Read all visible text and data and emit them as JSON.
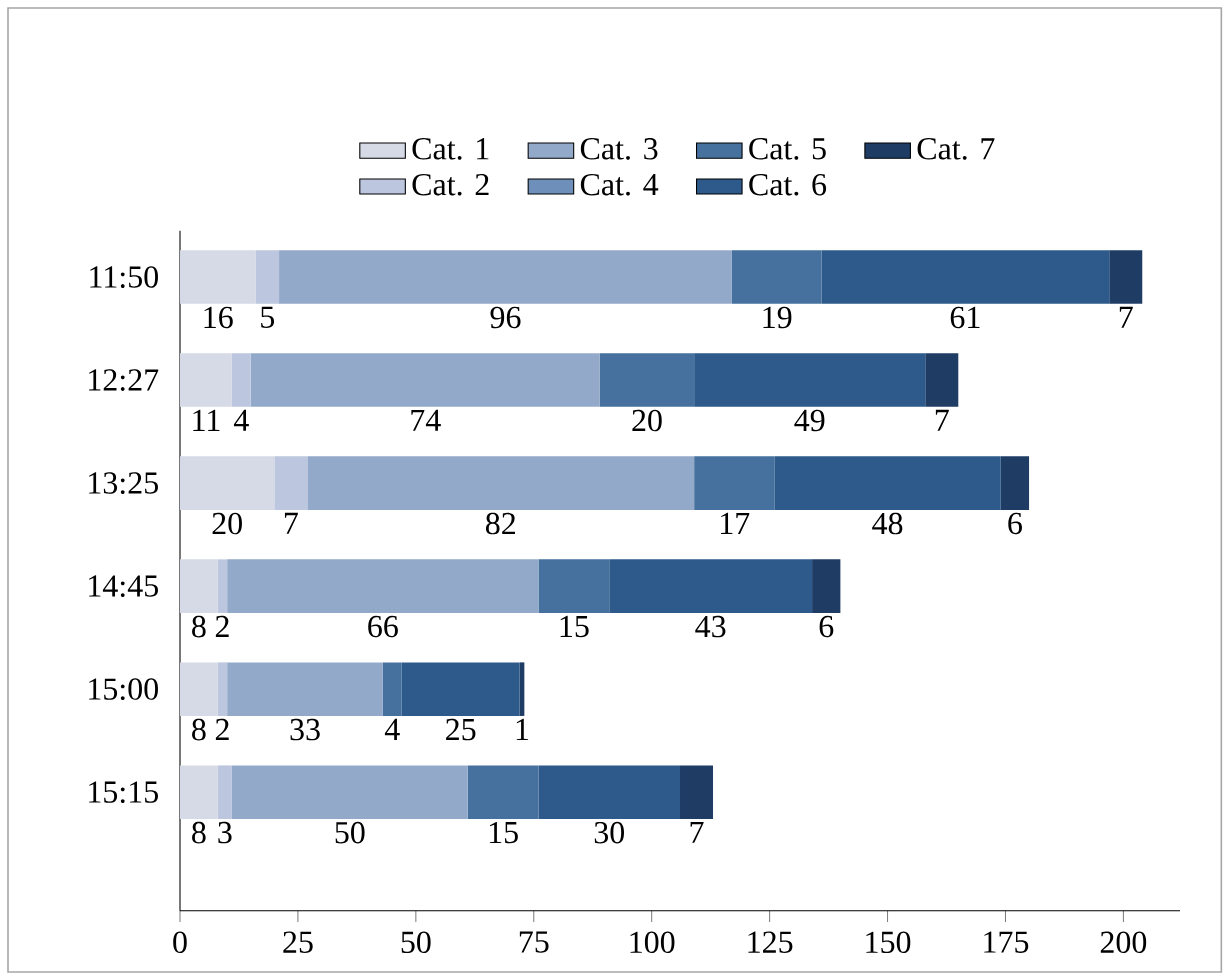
{
  "chart_data": {
    "type": "bar",
    "orientation": "horizontal",
    "stacked": true,
    "data_labels": true,
    "legend": "top",
    "categories": [
      "11:50",
      "12:27",
      "13:25",
      "14:45",
      "15:00",
      "15:15"
    ],
    "series": [
      {
        "name": "Cat. 1",
        "color": "#d5dae6",
        "values": [
          16,
          11,
          20,
          8,
          8,
          8
        ]
      },
      {
        "name": "Cat. 2",
        "color": "#bcc6de",
        "values": [
          5,
          4,
          7,
          2,
          2,
          3
        ]
      },
      {
        "name": "Cat. 3",
        "color": "#93a9c9",
        "values": [
          96,
          74,
          82,
          66,
          33,
          50
        ]
      },
      {
        "name": "Cat. 4",
        "color": "#6f8fbb",
        "values": [
          null,
          null,
          null,
          null,
          null,
          null
        ]
      },
      {
        "name": "Cat. 5",
        "color": "#46709e",
        "values": [
          19,
          20,
          17,
          15,
          4,
          15
        ]
      },
      {
        "name": "Cat. 6",
        "color": "#2d5a8a",
        "values": [
          61,
          49,
          48,
          43,
          25,
          30
        ]
      },
      {
        "name": "Cat. 7",
        "color": "#1e3c64",
        "values": [
          7,
          7,
          6,
          6,
          1,
          7
        ]
      }
    ],
    "xlim": [
      0,
      212
    ],
    "xticks": [
      0,
      25,
      50,
      75,
      100,
      125,
      150,
      175,
      200
    ]
  }
}
